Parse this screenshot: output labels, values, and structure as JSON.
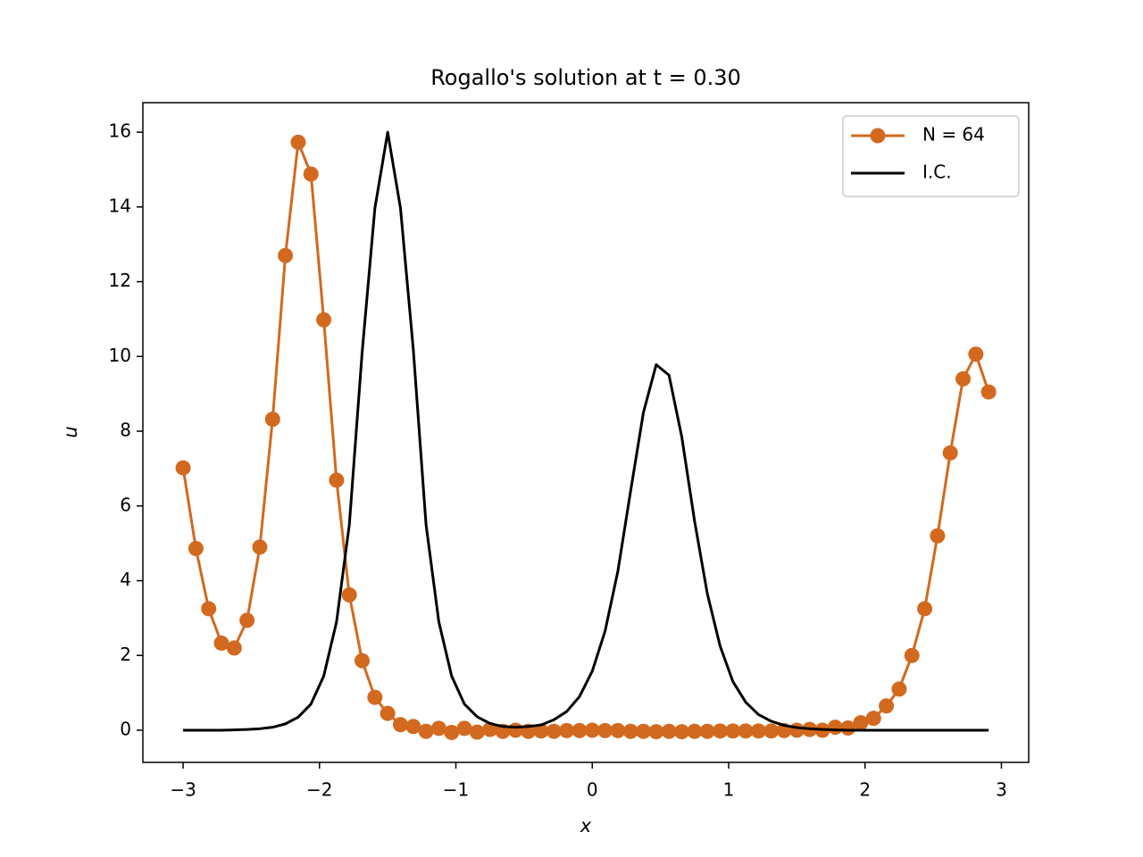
{
  "chart_data": {
    "type": "line",
    "title": "Rogallo's solution at t = 0.30",
    "xlabel": "x",
    "ylabel": "u",
    "x": [
      -3,
      -2.90625,
      -2.8125,
      -2.71875,
      -2.625,
      -2.53125,
      -2.4375,
      -2.34375,
      -2.25,
      -2.15625,
      -2.0625,
      -1.96875,
      -1.875,
      -1.78125,
      -1.6875,
      -1.59375,
      -1.5,
      -1.40625,
      -1.3125,
      -1.21875,
      -1.125,
      -1.03125,
      -0.9375,
      -0.84375,
      -0.75,
      -0.65625,
      -0.5625,
      -0.46875,
      -0.375,
      -0.28125,
      -0.1875,
      -0.09375,
      0,
      0.09375,
      0.1875,
      0.28125,
      0.375,
      0.46875,
      0.5625,
      0.65625,
      0.75,
      0.84375,
      0.9375,
      1.03125,
      1.125,
      1.21875,
      1.3125,
      1.40625,
      1.5,
      1.59375,
      1.6875,
      1.78125,
      1.875,
      1.96875,
      2.0625,
      2.15625,
      2.25,
      2.34375,
      2.4375,
      2.53125,
      2.625,
      2.71875,
      2.8125,
      2.90625
    ],
    "series": [
      {
        "name": "N = 64",
        "color": "#d2691e",
        "marker": "o",
        "values": [
          7.02,
          4.86,
          3.25,
          2.33,
          2.2,
          2.94,
          4.9,
          8.32,
          12.7,
          15.73,
          14.88,
          10.98,
          6.69,
          3.62,
          1.86,
          0.88,
          0.45,
          0.15,
          0.1,
          -0.03,
          0.05,
          -0.06,
          0.05,
          -0.05,
          0.02,
          -0.03,
          0,
          -0.03,
          -0.02,
          -0.03,
          -0.01,
          -0.01,
          0,
          -0.01,
          -0.01,
          -0.03,
          -0.03,
          -0.04,
          -0.03,
          -0.04,
          -0.03,
          -0.03,
          -0.02,
          -0.02,
          -0.02,
          -0.02,
          -0.02,
          -0.01,
          0,
          0.02,
          0,
          0.08,
          0.06,
          0.2,
          0.32,
          0.65,
          1.1,
          2.0,
          3.25,
          5.2,
          7.42,
          9.4,
          10.06,
          9.05
        ]
      },
      {
        "name": "I.C.",
        "color": "#000000",
        "marker": "none",
        "values": [
          0,
          0,
          0,
          0,
          0.01,
          0.02,
          0.04,
          0.08,
          0.17,
          0.35,
          0.7,
          1.45,
          2.9,
          5.5,
          10.1,
          13.97,
          16,
          13.97,
          10.2,
          5.5,
          2.9,
          1.45,
          0.7,
          0.36,
          0.18,
          0.1,
          0.08,
          0.1,
          0.14,
          0.28,
          0.5,
          0.9,
          1.58,
          2.65,
          4.25,
          6.4,
          8.5,
          9.78,
          9.5,
          7.85,
          5.6,
          3.65,
          2.25,
          1.3,
          0.75,
          0.42,
          0.24,
          0.13,
          0.07,
          0.04,
          0.02,
          0.01,
          0,
          0,
          0,
          0,
          0,
          0,
          0,
          0,
          0,
          0,
          0,
          0
        ]
      }
    ],
    "xlim": [
      -3.295,
      3.2
    ],
    "ylim": [
      -0.86,
      16.79
    ],
    "xticks": [
      {
        "value": -3,
        "label": "−3"
      },
      {
        "value": -2,
        "label": "−2"
      },
      {
        "value": -1,
        "label": "−1"
      },
      0,
      1,
      2,
      3
    ],
    "yticks": [
      0,
      2,
      4,
      6,
      8,
      10,
      12,
      14,
      16
    ],
    "grid": false,
    "legend": "upper right"
  }
}
